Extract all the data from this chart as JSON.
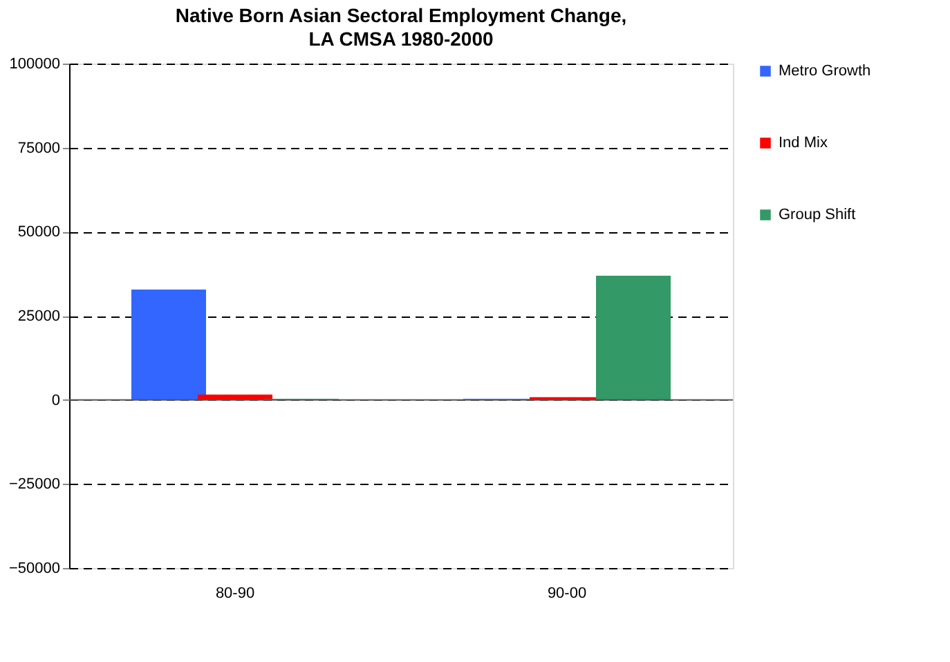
{
  "chart_data": {
    "type": "bar",
    "title": "Native Born Asian Sectoral Employment Change, LA CMSA 1980-2000",
    "categories": [
      "80-90",
      "90-00"
    ],
    "series": [
      {
        "name": "Metro Growth",
        "color": "#3366ff",
        "values": [
          32800,
          300
        ]
      },
      {
        "name": "Ind Mix",
        "color": "#ff0000",
        "values": [
          1600,
          800
        ]
      },
      {
        "name": "Group Shift",
        "color": "#339966",
        "values": [
          300,
          36900
        ]
      }
    ],
    "ylim": [
      -50000,
      100000
    ],
    "yticks": [
      -50000,
      -25000,
      0,
      25000,
      50000,
      75000,
      100000
    ],
    "grid": "y",
    "legend": "right"
  }
}
